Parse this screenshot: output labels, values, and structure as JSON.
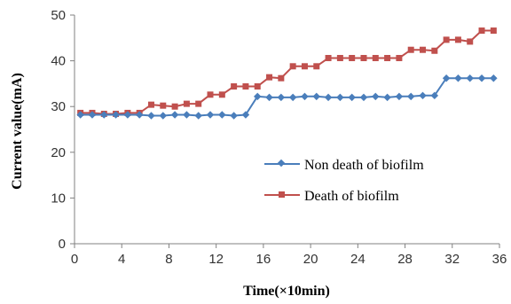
{
  "chart_data": {
    "type": "line",
    "xlabel": "Time(×10min)",
    "ylabel": "Current  value(mA)",
    "xlim": [
      0,
      36
    ],
    "ylim": [
      0,
      50
    ],
    "x_ticks": [
      0,
      4,
      8,
      12,
      16,
      20,
      24,
      28,
      32,
      36
    ],
    "y_ticks": [
      0,
      10,
      20,
      30,
      40,
      50
    ],
    "grid": false,
    "legend_position": "center-right",
    "x": [
      0.5,
      1.5,
      2.5,
      3.5,
      4.5,
      5.5,
      6.5,
      7.5,
      8.5,
      9.5,
      10.5,
      11.5,
      12.5,
      13.5,
      14.5,
      15.5,
      16.5,
      17.5,
      18.5,
      19.5,
      20.5,
      21.5,
      22.5,
      23.5,
      24.5,
      25.5,
      26.5,
      27.5,
      28.5,
      29.5,
      30.5,
      31.5,
      32.5,
      33.5,
      34.5,
      35.5
    ],
    "series": [
      {
        "name": "Non death of biofilm",
        "color": "#4a7ebb",
        "marker": "diamond",
        "values": [
          28.2,
          28.2,
          28.2,
          28.2,
          28.2,
          28.2,
          28.0,
          28.0,
          28.2,
          28.2,
          28.0,
          28.2,
          28.2,
          28.0,
          28.2,
          32.2,
          32.0,
          32.0,
          32.0,
          32.2,
          32.2,
          32.0,
          32.0,
          32.0,
          32.0,
          32.2,
          32.0,
          32.2,
          32.2,
          32.4,
          32.4,
          36.2,
          36.2,
          36.2,
          36.2,
          36.2
        ]
      },
      {
        "name": "Death of biofilm",
        "color": "#c0504d",
        "marker": "square",
        "values": [
          28.6,
          28.6,
          28.4,
          28.4,
          28.6,
          28.6,
          30.4,
          30.2,
          30.0,
          30.6,
          30.6,
          32.6,
          32.6,
          34.4,
          34.4,
          34.4,
          36.4,
          36.2,
          38.8,
          38.8,
          38.8,
          40.6,
          40.6,
          40.6,
          40.6,
          40.6,
          40.6,
          40.6,
          42.4,
          42.4,
          42.2,
          44.6,
          44.6,
          44.2,
          46.6,
          46.6
        ]
      }
    ]
  }
}
